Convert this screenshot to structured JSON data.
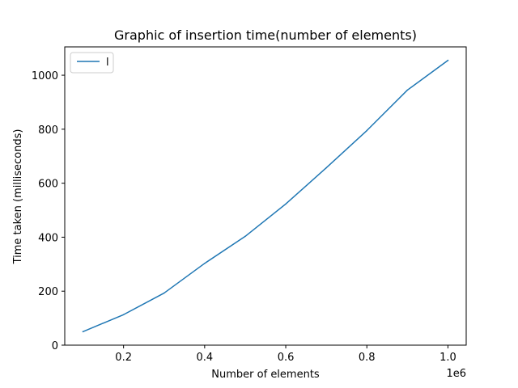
{
  "chart_data": {
    "type": "line",
    "title": "Graphic of insertion time(number of elements)",
    "xlabel": "Number of elements",
    "ylabel": "Time taken (milliseconds)",
    "x_offset_label": "1e6",
    "xlim": [
      0.055,
      1.045
    ],
    "ylim": [
      0,
      1105
    ],
    "x_ticks": [
      0.2,
      0.4,
      0.6,
      0.8,
      1.0
    ],
    "x_tick_labels": [
      "0.2",
      "0.4",
      "0.6",
      "0.8",
      "1.0"
    ],
    "y_ticks": [
      0,
      200,
      400,
      600,
      800,
      1000
    ],
    "y_tick_labels": [
      "0",
      "200",
      "400",
      "600",
      "800",
      "1000"
    ],
    "grid": false,
    "legend_position": "top-left",
    "series": [
      {
        "name": "l",
        "color": "#1f77b4",
        "x": [
          0.1,
          0.2,
          0.3,
          0.4,
          0.5,
          0.6,
          0.7,
          0.8,
          0.9,
          1.0
        ],
        "y": [
          50,
          113,
          193,
          303,
          403,
          523,
          657,
          795,
          945,
          1055
        ]
      }
    ]
  }
}
